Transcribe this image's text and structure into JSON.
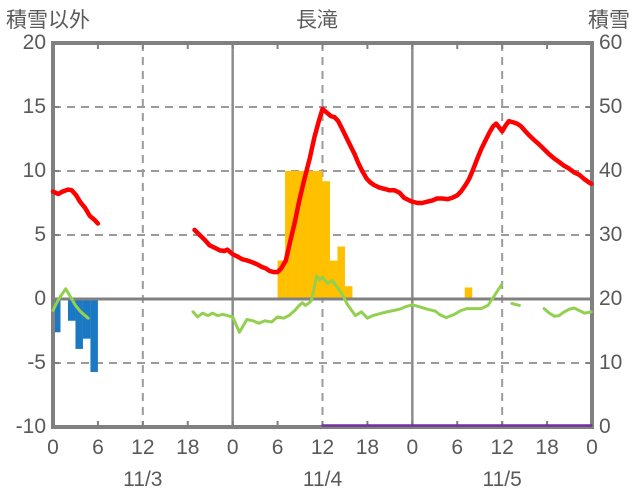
{
  "header": {
    "left_axis_label": "積雪以外",
    "title": "長滝",
    "right_axis_label": "積雪"
  },
  "chart_data": {
    "type": "mixed",
    "title": "長滝",
    "x_axis": {
      "total_hours": 72,
      "tick_interval_hours": 6,
      "hour_tick_labels": [
        "0",
        "6",
        "12",
        "18",
        "0",
        "6",
        "12",
        "18",
        "0",
        "6",
        "12",
        "18",
        "0"
      ],
      "date_labels": [
        "11/3",
        "11/4",
        "11/5"
      ]
    },
    "left_axis": {
      "label": "積雪以外",
      "min": -10,
      "max": 20,
      "ticks": [
        20,
        15,
        10,
        5,
        0,
        -5,
        -10
      ]
    },
    "right_axis": {
      "label": "積雪",
      "min": 0,
      "max": 60,
      "ticks": [
        60,
        50,
        40,
        30,
        20,
        10,
        0
      ]
    },
    "grid": {
      "h_dashed": [
        15,
        10,
        5,
        -5
      ],
      "h_solid_zero": 0,
      "v_dashed_hours": [
        12,
        36,
        60
      ],
      "v_solid_hours": [
        24,
        48
      ]
    },
    "colors": {
      "border": "#808080",
      "grid": "#9B9B9B",
      "grid_solid": "#8C8C8C",
      "zero_line": "#808080",
      "text": "#595959",
      "background": "#FFFFFF"
    },
    "series": [
      {
        "name": "blue-bars",
        "type": "bar",
        "axis": "left",
        "color": "#1B79C4",
        "bars": [
          [
            0,
            -2.6
          ],
          [
            2,
            -1.7
          ],
          [
            3,
            -3.9
          ],
          [
            4,
            -3.1
          ],
          [
            5,
            -5.7
          ]
        ]
      },
      {
        "name": "orange-bars",
        "type": "bar",
        "axis": "left",
        "color": "#FFC000",
        "bars": [
          [
            30,
            3.0
          ],
          [
            31,
            10
          ],
          [
            32,
            10
          ],
          [
            33,
            10
          ],
          [
            34,
            10
          ],
          [
            35,
            10
          ],
          [
            36,
            9.2
          ],
          [
            37,
            3.0
          ],
          [
            38,
            4.1
          ],
          [
            39,
            1.0
          ],
          [
            55,
            0.9
          ]
        ]
      },
      {
        "name": "purple-line",
        "type": "line",
        "axis": "right",
        "color": "#7030A0",
        "width": 2.5,
        "segments": [
          [
            [
              36,
              0
            ],
            [
              71.9,
              0
            ]
          ]
        ]
      },
      {
        "name": "green-line",
        "type": "line",
        "axis": "left",
        "color": "#92D050",
        "width": 3,
        "segments": [
          [
            [
              0,
              -0.9
            ],
            [
              0.5,
              -0.3
            ],
            [
              1,
              0.2
            ],
            [
              1.7,
              0.8
            ],
            [
              2.3,
              0.2
            ],
            [
              3,
              -0.5
            ],
            [
              3.7,
              -1.0
            ],
            [
              4.7,
              -1.5
            ]
          ],
          [
            [
              18.7,
              -1.0
            ],
            [
              19.3,
              -1.4
            ],
            [
              20,
              -1.1
            ],
            [
              20.7,
              -1.3
            ],
            [
              21.3,
              -1.1
            ],
            [
              22,
              -1.3
            ],
            [
              22.7,
              -1.2
            ],
            [
              23.3,
              -1.3
            ],
            [
              24,
              -1.4
            ],
            [
              24.9,
              -2.6
            ],
            [
              25.9,
              -1.6
            ],
            [
              26.7,
              -1.7
            ],
            [
              27.5,
              -1.9
            ],
            [
              28.3,
              -1.7
            ],
            [
              29.2,
              -1.8
            ],
            [
              30,
              -1.4
            ],
            [
              30.8,
              -1.5
            ],
            [
              31.5,
              -1.3
            ],
            [
              32.3,
              -0.9
            ],
            [
              32.9,
              -0.5
            ],
            [
              33.3,
              -0.3
            ],
            [
              33.7,
              -0.5
            ],
            [
              34.1,
              -0.35
            ],
            [
              34.5,
              -0.15
            ],
            [
              34.9,
              0.9
            ],
            [
              35.2,
              1.8
            ],
            [
              35.6,
              1.5
            ],
            [
              36,
              1.7
            ],
            [
              36.7,
              1.2
            ],
            [
              37.3,
              1.45
            ],
            [
              38,
              0.9
            ],
            [
              38.7,
              0.3
            ],
            [
              39.3,
              -0.4
            ],
            [
              39.9,
              -0.9
            ],
            [
              40.4,
              -1.3
            ],
            [
              41.2,
              -1.0
            ],
            [
              42,
              -1.5
            ],
            [
              42.7,
              -1.3
            ],
            [
              43.3,
              -1.2
            ],
            [
              44.3,
              -1.05
            ],
            [
              45.5,
              -0.9
            ],
            [
              46.3,
              -0.8
            ],
            [
              47.1,
              -0.6
            ],
            [
              48,
              -0.45
            ],
            [
              48.9,
              -0.6
            ],
            [
              50,
              -0.8
            ],
            [
              51.1,
              -0.95
            ],
            [
              51.6,
              -1.2
            ],
            [
              52.5,
              -1.45
            ],
            [
              53.6,
              -1.2
            ],
            [
              54.5,
              -0.9
            ],
            [
              55.3,
              -0.75
            ],
            [
              57.2,
              -0.75
            ],
            [
              58.1,
              -0.5
            ],
            [
              58.9,
              0.2
            ],
            [
              59.9,
              1.1
            ]
          ],
          [
            [
              61.3,
              -0.35
            ],
            [
              62.3,
              -0.5
            ]
          ],
          [
            [
              65.6,
              -0.75
            ],
            [
              66.3,
              -1.1
            ],
            [
              67,
              -1.35
            ],
            [
              67.6,
              -1.3
            ],
            [
              68.3,
              -1.0
            ],
            [
              69,
              -0.8
            ],
            [
              69.6,
              -0.7
            ],
            [
              70.3,
              -0.9
            ],
            [
              71,
              -1.1
            ],
            [
              71.9,
              -1.0
            ]
          ]
        ]
      },
      {
        "name": "red-line",
        "type": "line",
        "axis": "left",
        "color": "#FF0000",
        "width": 4.5,
        "segments": [
          [
            [
              0,
              8.4
            ],
            [
              0.7,
              8.2
            ],
            [
              1.3,
              8.4
            ],
            [
              2,
              8.55
            ],
            [
              2.5,
              8.5
            ],
            [
              3.1,
              8.1
            ],
            [
              3.6,
              7.6
            ],
            [
              4.3,
              7.1
            ],
            [
              4.9,
              6.5
            ],
            [
              5.5,
              6.2
            ],
            [
              6,
              5.9
            ]
          ],
          [
            [
              18.9,
              5.4
            ],
            [
              19.6,
              5.0
            ],
            [
              20.3,
              4.6
            ],
            [
              20.9,
              4.2
            ],
            [
              21.6,
              4.0
            ],
            [
              22.3,
              3.8
            ],
            [
              22.9,
              3.75
            ],
            [
              23.3,
              3.85
            ],
            [
              24,
              3.5
            ],
            [
              24.7,
              3.3
            ],
            [
              25.3,
              3.1
            ],
            [
              26,
              3.0
            ],
            [
              26.7,
              2.85
            ],
            [
              27.3,
              2.7
            ],
            [
              27.9,
              2.5
            ],
            [
              28.4,
              2.4
            ],
            [
              28.9,
              2.2
            ],
            [
              29.5,
              2.1
            ],
            [
              30,
              2.1
            ],
            [
              30.5,
              2.4
            ],
            [
              31.1,
              3.0
            ],
            [
              31.6,
              4.3
            ],
            [
              32.3,
              6.0
            ],
            [
              32.9,
              7.7
            ],
            [
              33.6,
              9.4
            ],
            [
              34.3,
              11.0
            ],
            [
              34.9,
              12.6
            ],
            [
              35.5,
              13.9
            ],
            [
              36,
              14.85
            ],
            [
              36.5,
              14.6
            ],
            [
              37.1,
              14.3
            ],
            [
              37.6,
              14.2
            ],
            [
              38.1,
              13.9
            ],
            [
              38.7,
              13.2
            ],
            [
              39.2,
              12.6
            ],
            [
              39.7,
              12.0
            ],
            [
              40.3,
              11.3
            ],
            [
              40.8,
              10.6
            ],
            [
              41.3,
              10.0
            ],
            [
              41.9,
              9.4
            ],
            [
              42.4,
              9.1
            ],
            [
              42.9,
              8.9
            ],
            [
              43.6,
              8.7
            ],
            [
              44.3,
              8.6
            ],
            [
              44.9,
              8.5
            ],
            [
              45.6,
              8.5
            ],
            [
              46.3,
              8.3
            ],
            [
              46.9,
              7.9
            ],
            [
              47.6,
              7.7
            ],
            [
              48,
              7.6
            ],
            [
              48.7,
              7.5
            ],
            [
              49.3,
              7.5
            ],
            [
              50,
              7.6
            ],
            [
              50.7,
              7.7
            ],
            [
              51.3,
              7.85
            ],
            [
              52,
              7.85
            ],
            [
              52.7,
              7.8
            ],
            [
              53.3,
              7.9
            ],
            [
              54,
              8.1
            ],
            [
              54.5,
              8.4
            ],
            [
              55.1,
              8.9
            ],
            [
              55.6,
              9.4
            ],
            [
              56.1,
              10.1
            ],
            [
              56.7,
              11.0
            ],
            [
              57.2,
              11.7
            ],
            [
              57.7,
              12.3
            ],
            [
              58.3,
              13.0
            ],
            [
              58.8,
              13.5
            ],
            [
              59.2,
              13.7
            ],
            [
              59.6,
              13.4
            ],
            [
              60,
              13.1
            ],
            [
              60.4,
              13.5
            ],
            [
              60.9,
              13.9
            ],
            [
              61.5,
              13.8
            ],
            [
              62,
              13.7
            ],
            [
              62.5,
              13.5
            ],
            [
              63.1,
              13.1
            ],
            [
              63.6,
              12.8
            ],
            [
              64.3,
              12.4
            ],
            [
              64.9,
              12.1
            ],
            [
              65.6,
              11.7
            ],
            [
              66.3,
              11.3
            ],
            [
              66.9,
              11.0
            ],
            [
              67.6,
              10.7
            ],
            [
              68.3,
              10.4
            ],
            [
              68.9,
              10.2
            ],
            [
              69.6,
              9.9
            ],
            [
              70.3,
              9.7
            ],
            [
              70.9,
              9.4
            ],
            [
              71.6,
              9.1
            ],
            [
              71.9,
              9.0
            ]
          ]
        ]
      }
    ]
  }
}
